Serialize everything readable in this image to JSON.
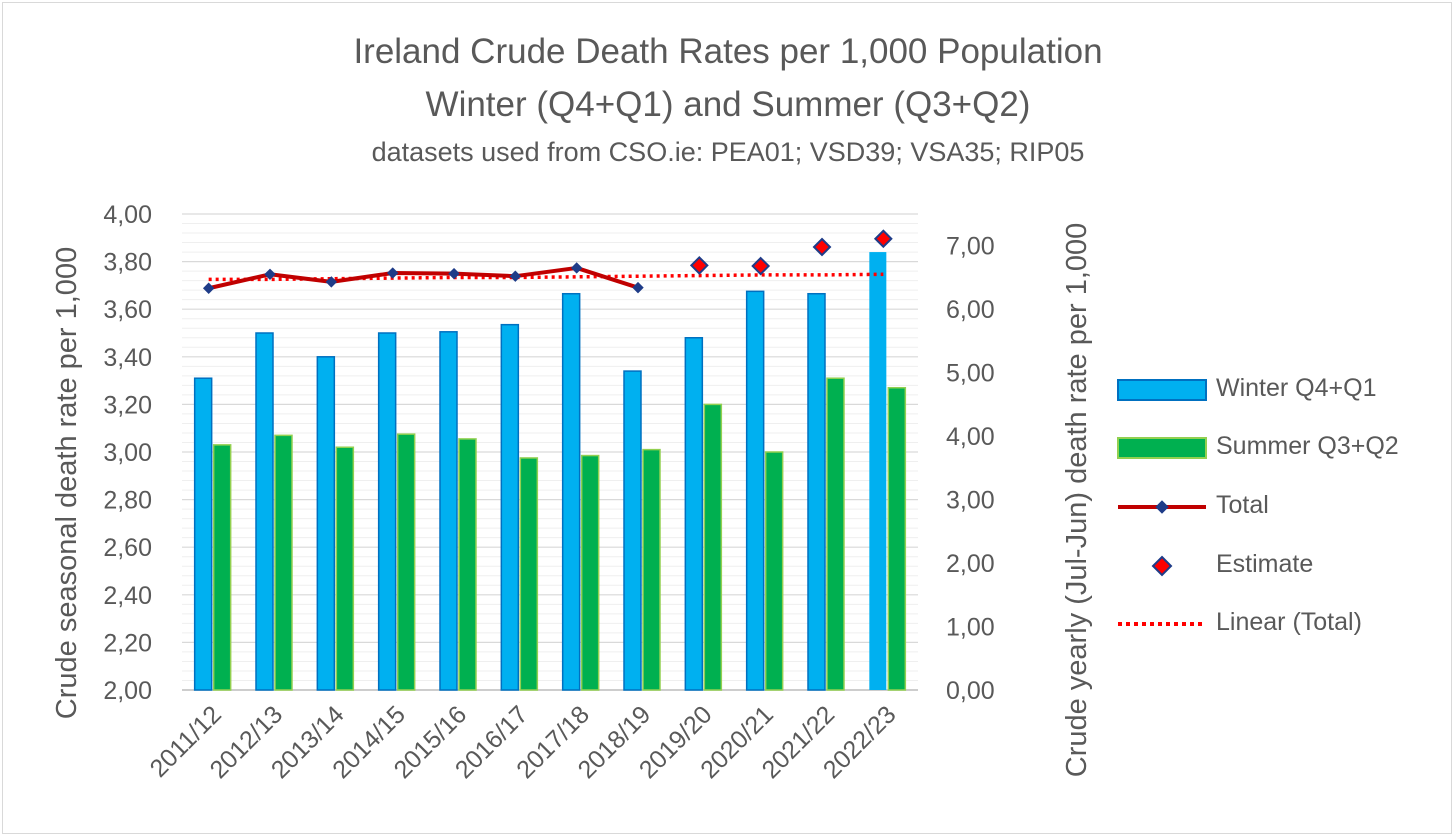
{
  "chart_data": {
    "type": "bar",
    "title": "Ireland Crude Death Rates per 1,000 Population",
    "subtitle": "Winter (Q4+Q1) and Summer (Q3+Q2)",
    "note": "datasets used from CSO.ie: PEA01; VSD39; VSA35; RIP05",
    "categories": [
      "2011/12",
      "2012/13",
      "2013/14",
      "2014/15",
      "2015/16",
      "2016/17",
      "2017/18",
      "2018/19",
      "2019/20",
      "2020/21",
      "2021/22",
      "2022/23"
    ],
    "y_left": {
      "label": "Crude seasonal death rate per 1,000",
      "ylim": [
        2.0,
        4.0
      ],
      "ticks": [
        "2,00",
        "2,20",
        "2,40",
        "2,60",
        "2,80",
        "3,00",
        "3,20",
        "3,40",
        "3,60",
        "3,80",
        "4,00"
      ]
    },
    "y_right": {
      "label": "Crude yearly (Jul-Jun) death rate per 1,000",
      "ylim": [
        0,
        7.5
      ],
      "ticks": [
        "0,00",
        "1,00",
        "2,00",
        "3,00",
        "4,00",
        "5,00",
        "6,00",
        "7,00"
      ]
    },
    "series": [
      {
        "name": "Winter Q4+Q1",
        "axis": "left",
        "kind": "bar",
        "color": "#00b0f0",
        "values": [
          3.31,
          3.5,
          3.4,
          3.5,
          3.505,
          3.535,
          3.665,
          3.34,
          3.48,
          3.675,
          3.665,
          3.84
        ]
      },
      {
        "name": "Summer Q3+Q2",
        "axis": "left",
        "kind": "bar",
        "color": "#00b050",
        "values": [
          3.03,
          3.07,
          3.02,
          3.075,
          3.055,
          2.975,
          2.985,
          3.01,
          3.2,
          3.0,
          3.31,
          3.27
        ]
      },
      {
        "name": "Total",
        "axis": "right",
        "kind": "line",
        "color": "#c00000",
        "values": [
          6.33,
          6.55,
          6.43,
          6.57,
          6.56,
          6.52,
          6.65,
          6.34,
          null,
          null,
          null,
          null
        ]
      },
      {
        "name": "Estimate",
        "axis": "right",
        "kind": "marker",
        "color": "#ff0000",
        "values": [
          null,
          null,
          null,
          null,
          null,
          null,
          null,
          null,
          6.69,
          6.68,
          6.98,
          7.11
        ]
      },
      {
        "name": "Linear (Total)",
        "axis": "right",
        "kind": "trend",
        "color": "#ff0000",
        "values": [
          6.47,
          6.47,
          6.48,
          6.49,
          6.5,
          6.5,
          6.51,
          6.52,
          6.53,
          6.54,
          6.54,
          6.55
        ]
      }
    ],
    "grid": true,
    "legend_position": "right"
  }
}
